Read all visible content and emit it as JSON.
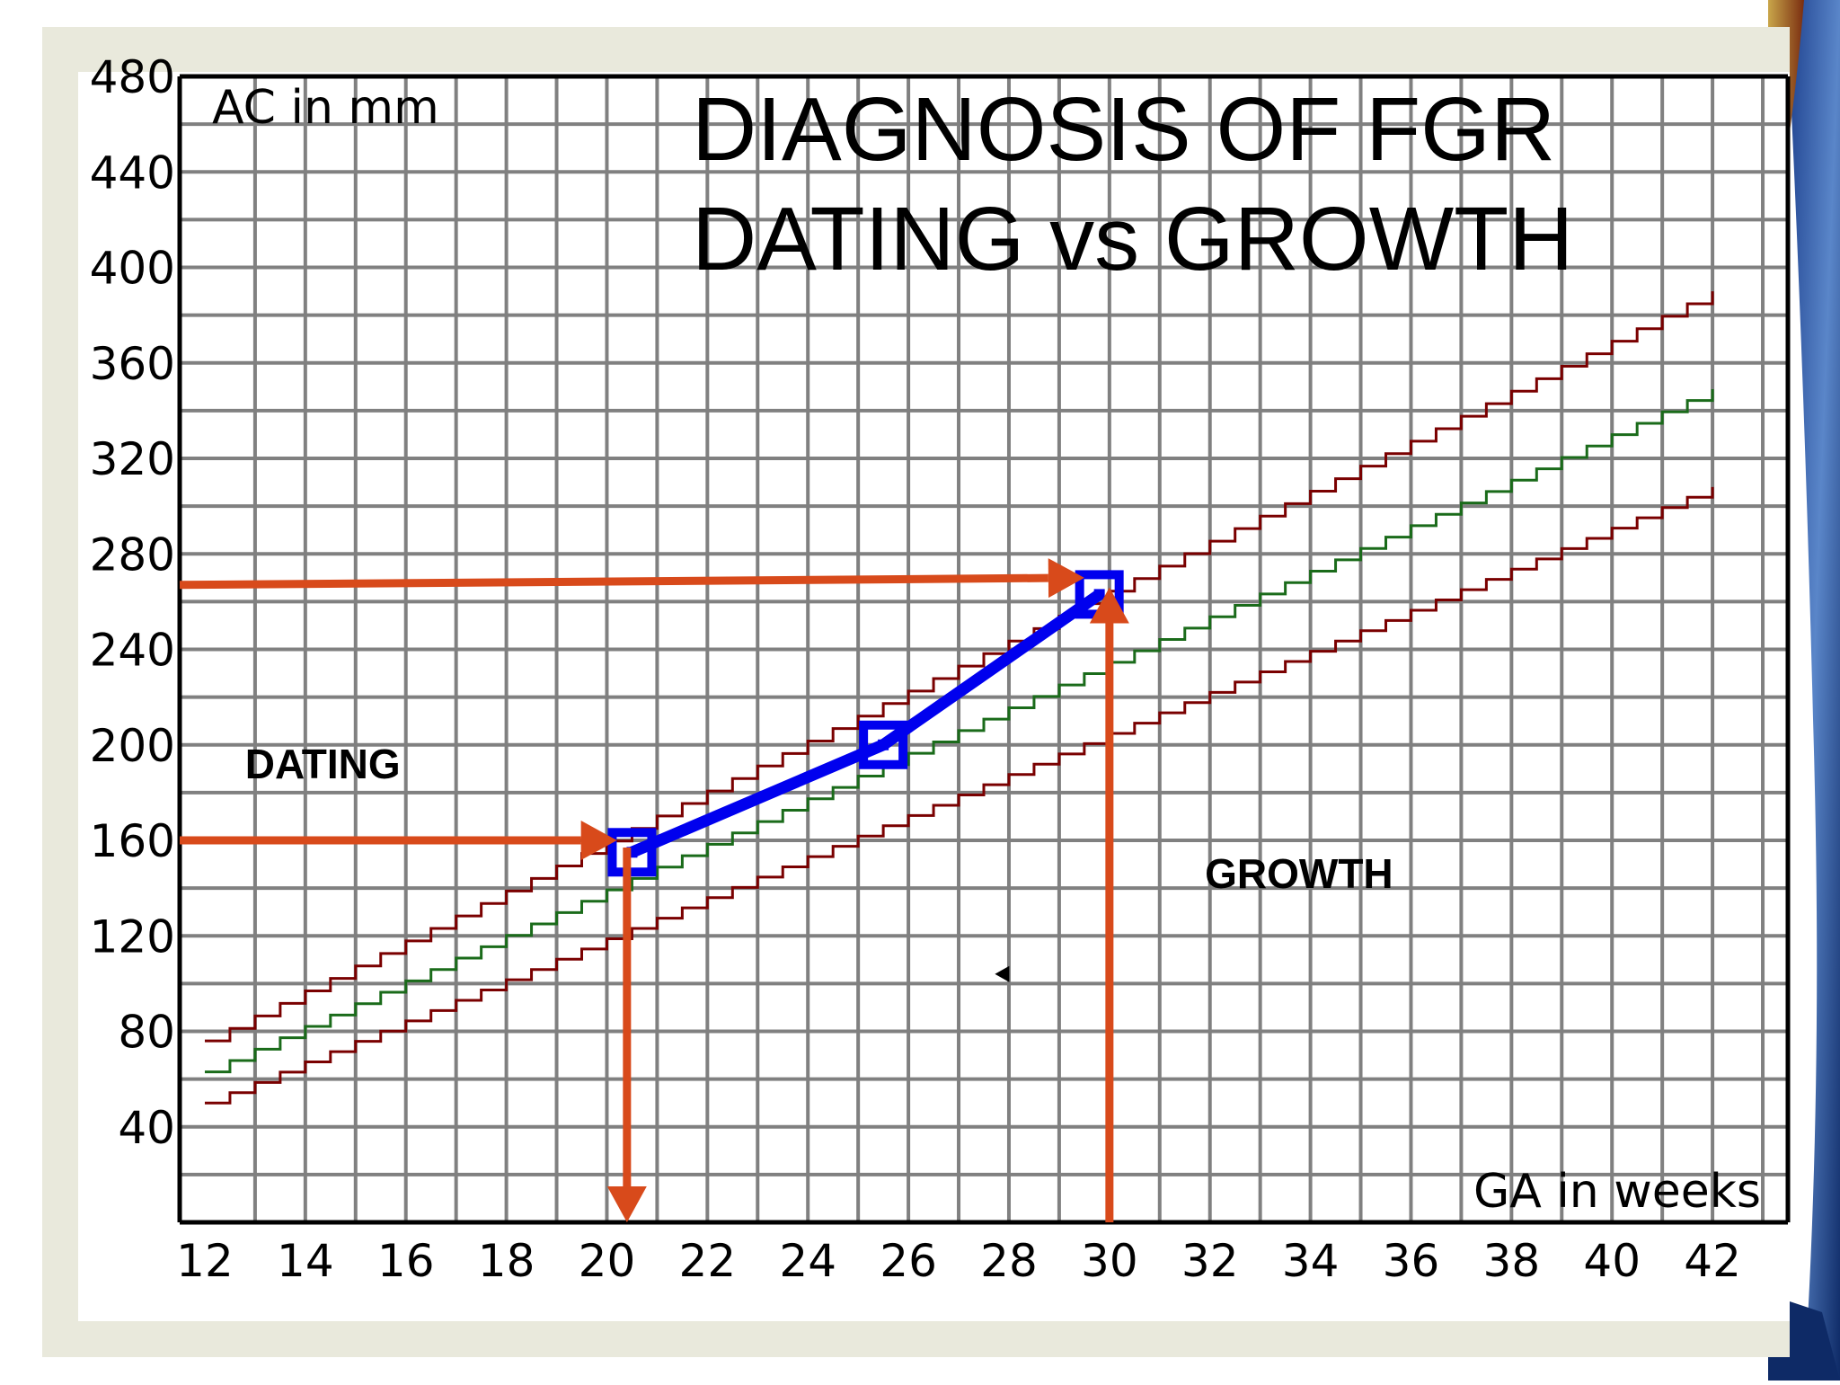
{
  "chart_data": {
    "type": "line",
    "title_lines": [
      "DIAGNOSIS OF FGR",
      "DATING vs GROWTH"
    ],
    "ylabel": "AC in mm",
    "xlabel": "GA in weeks",
    "xlim": [
      11.5,
      43.5
    ],
    "ylim": [
      0,
      480
    ],
    "x_ticks": [
      12,
      14,
      16,
      18,
      20,
      22,
      24,
      26,
      28,
      30,
      32,
      34,
      36,
      38,
      40,
      42
    ],
    "y_ticks": [
      40,
      80,
      120,
      160,
      200,
      240,
      280,
      320,
      360,
      400,
      440,
      480
    ],
    "grid": true,
    "series": [
      {
        "name": "",
        "color": "#7a0000",
        "x": [
          12,
          42
        ],
        "y": [
          76,
          390
        ]
      },
      {
        "name": "",
        "color": "#1a6b1a",
        "x": [
          12,
          42
        ],
        "y": [
          63,
          349
        ]
      },
      {
        "name": "",
        "color": "#7a0000",
        "x": [
          12,
          42
        ],
        "y": [
          50,
          308
        ]
      },
      {
        "name": "",
        "color": "#0000ee",
        "x": [
          20.5,
          25.5,
          29.8
        ],
        "y": [
          155,
          200,
          263
        ],
        "markers": true
      }
    ],
    "annotations": [
      {
        "text": "DATING",
        "x": 12.8,
        "y": 186
      },
      {
        "text": "GROWTH",
        "x": 31.9,
        "y": 140
      }
    ],
    "arrows": [
      {
        "from": [
          11.5,
          160
        ],
        "to": [
          20.2,
          160
        ],
        "color": "#d84a1b"
      },
      {
        "from": [
          20.4,
          157
        ],
        "to": [
          20.4,
          0
        ],
        "color": "#d84a1b"
      },
      {
        "from": [
          11.5,
          267
        ],
        "to": [
          29.5,
          270
        ],
        "color": "#d84a1b"
      },
      {
        "from": [
          30.0,
          0
        ],
        "to": [
          30.0,
          266
        ],
        "color": "#d84a1b"
      }
    ],
    "small_marker": {
      "x": 27.9,
      "y": 104
    }
  }
}
